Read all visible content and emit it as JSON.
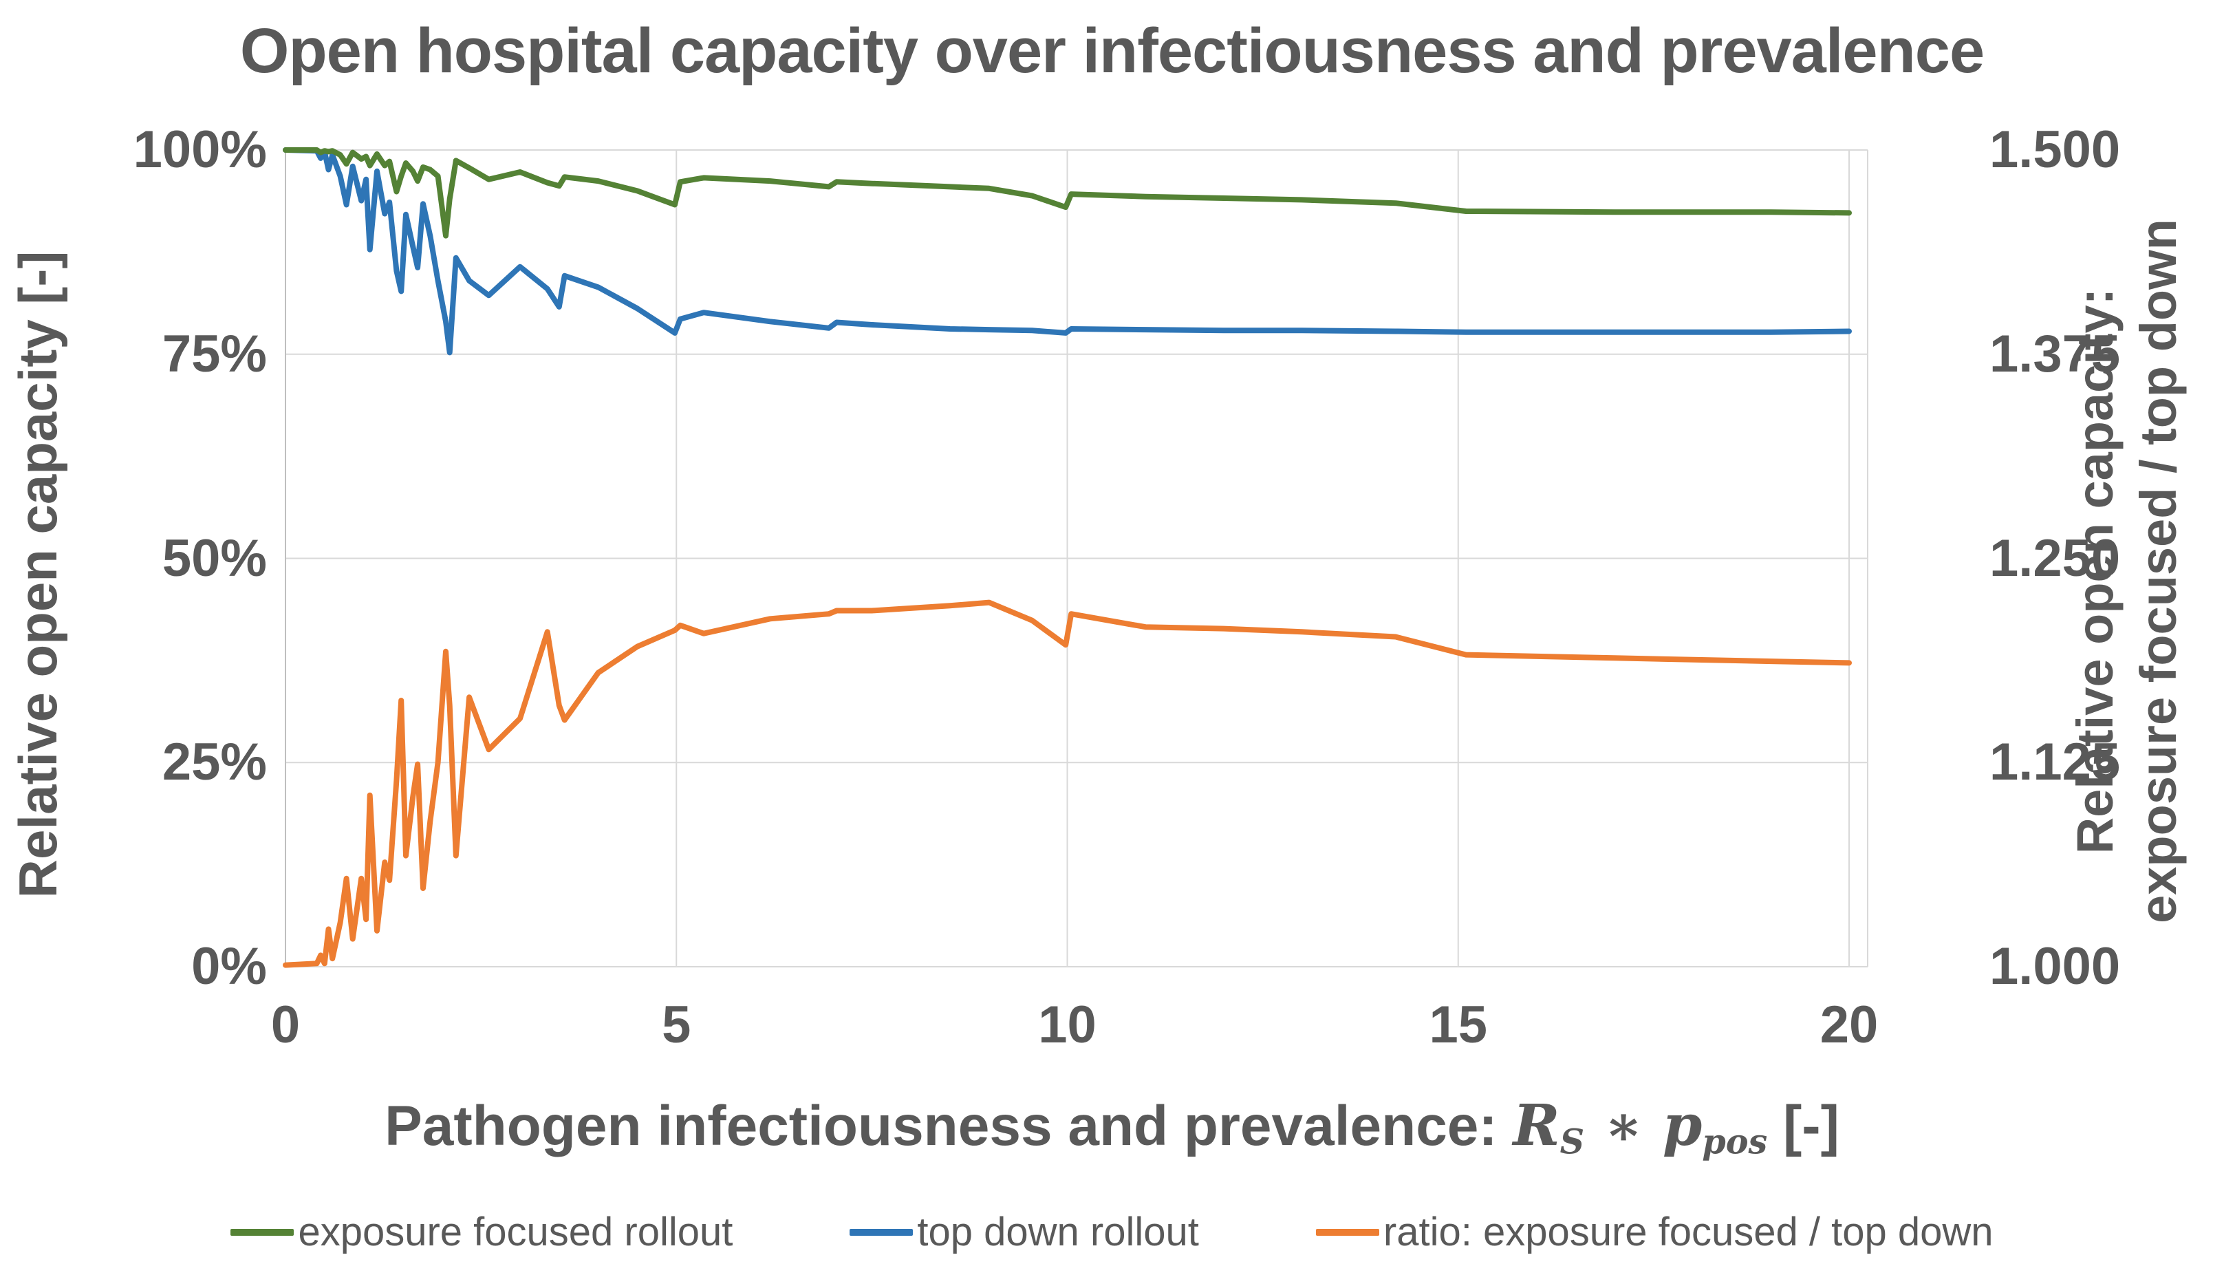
{
  "title": "Open hospital capacity over infectiousness and prevalence",
  "axes": {
    "y_left": {
      "title": "Relative open capacity [-]",
      "tick_labels": [
        "100%",
        "75%",
        "50%",
        "25%",
        "0%"
      ]
    },
    "y_right": {
      "title_line1": "Relative open capacity:",
      "title_line2": "exposure focused / top down",
      "tick_labels": [
        "1.500",
        "1.375",
        "1.250",
        "1.125",
        "1.000"
      ]
    },
    "x": {
      "title_prefix": "Pathogen infectiousness and prevalence: ",
      "math_var1": "R",
      "math_sub1": "S",
      "math_operator": " ∗ ",
      "math_var2": "p",
      "math_sub2": "pos",
      "title_suffix": " [-]",
      "tick_labels": [
        "0",
        "5",
        "10",
        "15",
        "20"
      ],
      "tick_values": [
        0,
        5,
        10,
        15,
        20
      ]
    }
  },
  "legend": [
    {
      "label": "exposure focused rollout",
      "color": "#548235"
    },
    {
      "label": "top down rollout",
      "color": "#2E75B6"
    },
    {
      "label": "ratio: exposure focused / top down",
      "color": "#ED7D31"
    }
  ],
  "colors": {
    "text": "#595959",
    "gridline": "#D9D9D9",
    "axis_line": "#BFBFBF",
    "series_green": "#548235",
    "series_blue": "#2E75B6",
    "series_orange": "#ED7D31"
  },
  "chart_data": {
    "type": "line",
    "title": "Open hospital capacity over infectiousness and prevalence",
    "xlabel": "Pathogen infectiousness and prevalence: R_S * p_pos [-]",
    "ylabel_left": "Relative open capacity [-] (%)",
    "ylabel_right": "Relative open capacity: exposure focused / top down",
    "xlim": [
      0,
      20
    ],
    "ylim_left_pct": [
      0,
      100
    ],
    "ylim_right": [
      1.0,
      1.5
    ],
    "grid": true,
    "legend_position": "bottom",
    "x": [
      0,
      0.4,
      0.45,
      0.5,
      0.55,
      0.6,
      0.7,
      0.78,
      0.86,
      0.97,
      1.03,
      1.08,
      1.17,
      1.27,
      1.33,
      1.42,
      1.48,
      1.54,
      1.63,
      1.69,
      1.76,
      1.85,
      1.95,
      2.05,
      2.1,
      2.18,
      2.35,
      2.6,
      3.0,
      3.35,
      3.5,
      3.57,
      4.0,
      4.5,
      4.98,
      5.05,
      5.35,
      6.2,
      6.95,
      7.05,
      7.5,
      8.5,
      9.0,
      9.55,
      9.98,
      10.05,
      11.0,
      12.0,
      13.0,
      14.2,
      15.1,
      17.0,
      19.0,
      20.0
    ],
    "series": [
      {
        "name": "exposure focused rollout",
        "axis": "left",
        "unit": "%",
        "color": "#548235",
        "values": [
          100,
          100,
          99.7,
          99.9,
          99.8,
          99.9,
          99.4,
          98.3,
          99.7,
          98.9,
          99.2,
          98.1,
          99.5,
          98.1,
          98.6,
          94.9,
          96.8,
          98.4,
          97.4,
          96.2,
          97.9,
          97.6,
          96.8,
          89.5,
          94.0,
          98.7,
          97.8,
          96.4,
          97.3,
          96.0,
          95.6,
          96.7,
          96.2,
          95.0,
          93.3,
          96.1,
          96.6,
          96.2,
          95.5,
          96.1,
          95.9,
          95.5,
          95.3,
          94.4,
          93.0,
          94.6,
          94.3,
          94.1,
          93.9,
          93.5,
          92.5,
          92.4,
          92.4,
          92.3
        ]
      },
      {
        "name": "top down rollout",
        "axis": "left",
        "unit": "%",
        "color": "#2E75B6",
        "values": [
          100,
          99.9,
          99.0,
          99.8,
          97.6,
          99.4,
          96.8,
          93.3,
          98.0,
          93.8,
          96.4,
          87.8,
          97.4,
          92.2,
          93.6,
          85.2,
          82.7,
          92.1,
          88.2,
          85.6,
          93.4,
          89.5,
          84.0,
          79.0,
          75.2,
          86.8,
          84.0,
          82.2,
          85.7,
          83.0,
          80.8,
          84.6,
          83.2,
          80.6,
          77.6,
          79.3,
          80.1,
          79.0,
          78.2,
          78.9,
          78.6,
          78.1,
          78.0,
          77.9,
          77.6,
          78.1,
          78.0,
          77.9,
          77.9,
          77.8,
          77.7,
          77.7,
          77.7,
          77.8
        ]
      },
      {
        "name": "ratio: exposure focused / top down",
        "axis": "right",
        "unit": "ratio",
        "color": "#ED7D31",
        "values": [
          1.001,
          1.002,
          1.007,
          1.002,
          1.023,
          1.005,
          1.027,
          1.054,
          1.017,
          1.054,
          1.029,
          1.105,
          1.022,
          1.064,
          1.053,
          1.114,
          1.163,
          1.068,
          1.104,
          1.124,
          1.048,
          1.089,
          1.125,
          1.193,
          1.16,
          1.068,
          1.165,
          1.133,
          1.152,
          1.205,
          1.16,
          1.151,
          1.18,
          1.196,
          1.206,
          1.209,
          1.204,
          1.213,
          1.216,
          1.218,
          1.218,
          1.221,
          1.223,
          1.212,
          1.197,
          1.216,
          1.208,
          1.207,
          1.205,
          1.202,
          1.191,
          1.189,
          1.187,
          1.186
        ]
      }
    ]
  }
}
